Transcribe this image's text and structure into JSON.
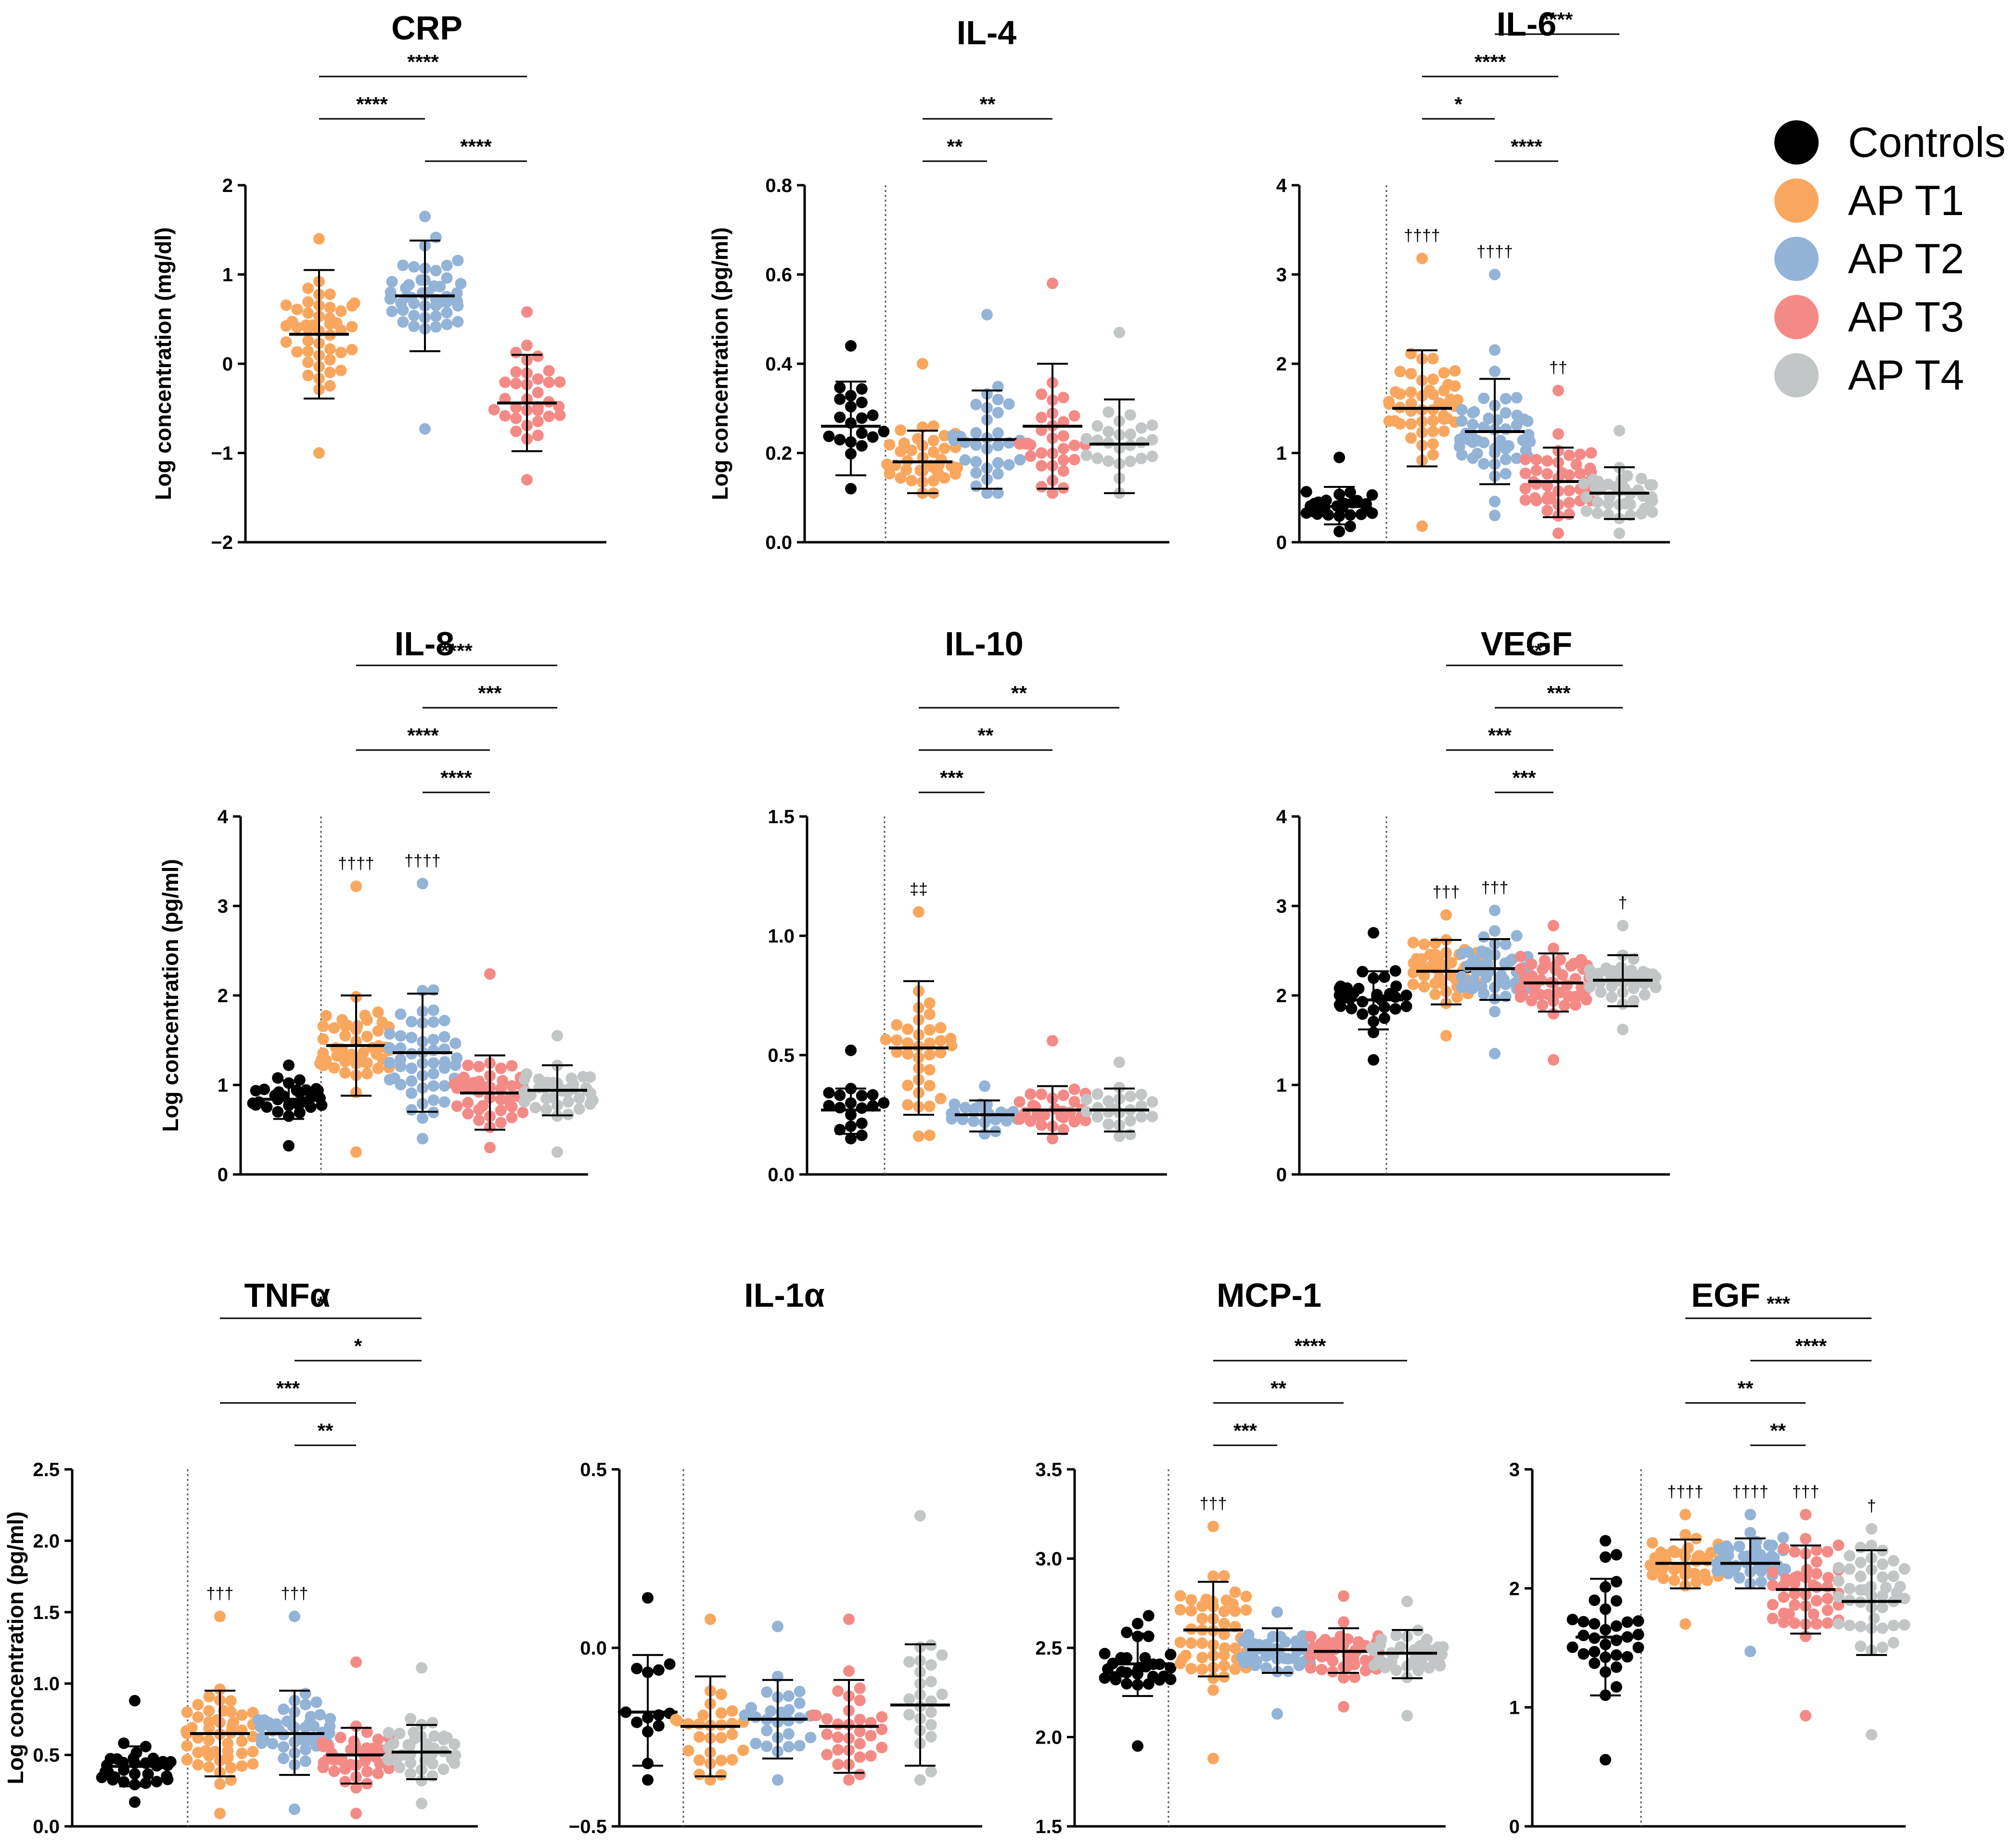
{
  "colors": {
    "Controls": "#000000",
    "AP T1": "#F9A75E",
    "AP T2": "#93B3D7",
    "AP T3": "#F48A86",
    "AP T4": "#C3C6C6"
  },
  "legend": [
    "Controls",
    "AP T1",
    "AP T2",
    "AP T3",
    "AP T4"
  ],
  "chart_data": [
    {
      "type": "scatter",
      "title": "CRP",
      "ylabel": "Log concentration (mg/dl)",
      "ylim": [
        -2,
        2
      ],
      "yticks": [
        "-2",
        "-1",
        "0",
        "1",
        "2"
      ],
      "groups": [
        {
          "name": "AP T1",
          "mean": 0.33,
          "sd_low": -0.39,
          "sd_high": 1.05,
          "n": 48,
          "min": -1.0,
          "max": 1.4
        },
        {
          "name": "AP T2",
          "mean": 0.76,
          "sd_low": 0.14,
          "sd_high": 1.38,
          "n": 52,
          "min": -0.73,
          "max": 1.65
        },
        {
          "name": "AP T3",
          "mean": -0.44,
          "sd_low": -0.98,
          "sd_high": 0.1,
          "n": 34,
          "min": -1.3,
          "max": 0.58
        }
      ],
      "comparisons": [
        {
          "from": "AP T1",
          "to": "AP T3",
          "label": "****"
        },
        {
          "from": "AP T1",
          "to": "AP T2",
          "label": "****"
        },
        {
          "from": "AP T2",
          "to": "AP T3",
          "label": "****"
        }
      ],
      "daggers": []
    },
    {
      "type": "scatter",
      "title": "IL-4",
      "ylabel": "Log concentration (pg/ml)",
      "ylim": [
        0,
        0.8
      ],
      "yticks": [
        "0.0",
        "0.2",
        "0.4",
        "0.6",
        "0.8"
      ],
      "groups": [
        {
          "name": "Controls",
          "mean": 0.26,
          "sd_low": 0.15,
          "sd_high": 0.36,
          "n": 20,
          "min": 0.12,
          "max": 0.44
        },
        {
          "name": "AP T1",
          "mean": 0.18,
          "sd_low": 0.11,
          "sd_high": 0.25,
          "n": 40,
          "min": 0.11,
          "max": 0.4
        },
        {
          "name": "AP T2",
          "mean": 0.23,
          "sd_low": 0.12,
          "sd_high": 0.34,
          "n": 34,
          "min": 0.11,
          "max": 0.51
        },
        {
          "name": "AP T3",
          "mean": 0.26,
          "sd_low": 0.12,
          "sd_high": 0.4,
          "n": 32,
          "min": 0.11,
          "max": 0.58
        },
        {
          "name": "AP T4",
          "mean": 0.22,
          "sd_low": 0.11,
          "sd_high": 0.32,
          "n": 26,
          "min": 0.11,
          "max": 0.47
        }
      ],
      "comparisons": [
        {
          "from": "AP T1",
          "to": "AP T3",
          "label": "**"
        },
        {
          "from": "AP T1",
          "to": "AP T2",
          "label": "**"
        }
      ],
      "daggers": []
    },
    {
      "type": "scatter",
      "title": "IL-6",
      "ylabel": "",
      "ylim": [
        0,
        4
      ],
      "yticks": [
        "0",
        "1",
        "2",
        "3",
        "4"
      ],
      "groups": [
        {
          "name": "Controls",
          "mean": 0.4,
          "sd_low": 0.2,
          "sd_high": 0.62,
          "n": 32,
          "min": 0.12,
          "max": 0.95
        },
        {
          "name": "AP T1",
          "mean": 1.5,
          "sd_low": 0.85,
          "sd_high": 2.15,
          "n": 50,
          "min": 0.18,
          "max": 3.18
        },
        {
          "name": "AP T2",
          "mean": 1.24,
          "sd_low": 0.65,
          "sd_high": 1.83,
          "n": 52,
          "min": 0.3,
          "max": 3.0
        },
        {
          "name": "AP T3",
          "mean": 0.68,
          "sd_low": 0.28,
          "sd_high": 1.06,
          "n": 44,
          "min": 0.1,
          "max": 1.7
        },
        {
          "name": "AP T4",
          "mean": 0.55,
          "sd_low": 0.26,
          "sd_high": 0.84,
          "n": 42,
          "min": 0.1,
          "max": 1.25
        }
      ],
      "comparisons": [
        {
          "from": "AP T1",
          "to": "AP T4",
          "label": "****"
        },
        {
          "from": "AP T2",
          "to": "AP T4",
          "label": "****"
        },
        {
          "from": "AP T1",
          "to": "AP T3",
          "label": "****"
        },
        {
          "from": "AP T1",
          "to": "AP T2",
          "label": "*"
        },
        {
          "from": "AP T2",
          "to": "AP T3",
          "label": "****"
        }
      ],
      "daggers": [
        {
          "group": "AP T1",
          "label": "††††"
        },
        {
          "group": "AP T2",
          "label": "††††"
        },
        {
          "group": "AP T3",
          "label": "††"
        }
      ]
    },
    {
      "type": "scatter",
      "title": "IL-8",
      "ylabel": "Log concentration (pg/ml)",
      "ylim": [
        0,
        4
      ],
      "yticks": [
        "0",
        "1",
        "2",
        "3",
        "4"
      ],
      "groups": [
        {
          "name": "Controls",
          "mean": 0.84,
          "sd_low": 0.62,
          "sd_high": 1.05,
          "n": 32,
          "min": 0.32,
          "max": 1.22
        },
        {
          "name": "AP T1",
          "mean": 1.44,
          "sd_low": 0.88,
          "sd_high": 2.0,
          "n": 52,
          "min": 0.25,
          "max": 3.22
        },
        {
          "name": "AP T2",
          "mean": 1.36,
          "sd_low": 0.7,
          "sd_high": 2.02,
          "n": 52,
          "min": 0.4,
          "max": 3.25
        },
        {
          "name": "AP T3",
          "mean": 0.91,
          "sd_low": 0.5,
          "sd_high": 1.33,
          "n": 46,
          "min": 0.3,
          "max": 2.24
        },
        {
          "name": "AP T4",
          "mean": 0.94,
          "sd_low": 0.66,
          "sd_high": 1.22,
          "n": 44,
          "min": 0.25,
          "max": 1.55
        }
      ],
      "comparisons": [
        {
          "from": "AP T1",
          "to": "AP T4",
          "label": "****"
        },
        {
          "from": "AP T2",
          "to": "AP T4",
          "label": "***"
        },
        {
          "from": "AP T1",
          "to": "AP T3",
          "label": "****"
        },
        {
          "from": "AP T2",
          "to": "AP T3",
          "label": "****"
        }
      ],
      "daggers": [
        {
          "group": "AP T1",
          "label": "††††"
        },
        {
          "group": "AP T2",
          "label": "††††"
        }
      ]
    },
    {
      "type": "scatter",
      "title": "IL-10",
      "ylabel": "",
      "ylim": [
        0,
        1.5
      ],
      "yticks": [
        "0.0",
        "0.5",
        "1.0",
        "1.5"
      ],
      "groups": [
        {
          "name": "Controls",
          "mean": 0.27,
          "sd_low": 0.17,
          "sd_high": 0.36,
          "n": 18,
          "min": 0.15,
          "max": 0.52
        },
        {
          "name": "AP T1",
          "mean": 0.53,
          "sd_low": 0.25,
          "sd_high": 0.81,
          "n": 36,
          "min": 0.16,
          "max": 1.1
        },
        {
          "name": "AP T2",
          "mean": 0.25,
          "sd_low": 0.18,
          "sd_high": 0.31,
          "n": 26,
          "min": 0.17,
          "max": 0.37
        },
        {
          "name": "AP T3",
          "mean": 0.27,
          "sd_low": 0.17,
          "sd_high": 0.37,
          "n": 30,
          "min": 0.15,
          "max": 0.56
        },
        {
          "name": "AP T4",
          "mean": 0.27,
          "sd_low": 0.18,
          "sd_high": 0.36,
          "n": 24,
          "min": 0.16,
          "max": 0.47
        }
      ],
      "comparisons": [
        {
          "from": "AP T1",
          "to": "AP T4",
          "label": "**"
        },
        {
          "from": "AP T1",
          "to": "AP T3",
          "label": "**"
        },
        {
          "from": "AP T1",
          "to": "AP T2",
          "label": "***"
        }
      ],
      "daggers": [
        {
          "group": "AP T1",
          "label": "‡‡"
        }
      ]
    },
    {
      "type": "scatter",
      "title": "VEGF",
      "ylabel": "",
      "ylim": [
        0,
        4
      ],
      "yticks": [
        "0",
        "1",
        "2",
        "3",
        "4"
      ],
      "groups": [
        {
          "name": "Controls",
          "mean": 1.95,
          "sd_low": 1.62,
          "sd_high": 2.27,
          "n": 34,
          "min": 1.28,
          "max": 2.7
        },
        {
          "name": "AP T1",
          "mean": 2.27,
          "sd_low": 1.9,
          "sd_high": 2.62,
          "n": 52,
          "min": 1.55,
          "max": 2.9
        },
        {
          "name": "AP T2",
          "mean": 2.3,
          "sd_low": 1.95,
          "sd_high": 2.63,
          "n": 52,
          "min": 1.35,
          "max": 2.95
        },
        {
          "name": "AP T3",
          "mean": 2.14,
          "sd_low": 1.82,
          "sd_high": 2.47,
          "n": 48,
          "min": 1.28,
          "max": 2.78
        },
        {
          "name": "AP T4",
          "mean": 2.17,
          "sd_low": 1.88,
          "sd_high": 2.45,
          "n": 46,
          "min": 1.62,
          "max": 2.78
        }
      ],
      "comparisons": [
        {
          "from": "AP T1",
          "to": "AP T4",
          "label": "**"
        },
        {
          "from": "AP T2",
          "to": "AP T4",
          "label": "***"
        },
        {
          "from": "AP T1",
          "to": "AP T3",
          "label": "***"
        },
        {
          "from": "AP T2",
          "to": "AP T3",
          "label": "***"
        }
      ],
      "daggers": [
        {
          "group": "AP T1",
          "label": "†††"
        },
        {
          "group": "AP T2",
          "label": "†††"
        },
        {
          "group": "AP T4",
          "label": "†"
        }
      ]
    },
    {
      "type": "scatter",
      "title": "TNFα",
      "ylabel": "Log concentration (pg/ml)",
      "ylim": [
        0,
        2.5
      ],
      "yticks": [
        "0.0",
        "0.5",
        "1.0",
        "1.5",
        "2.0",
        "2.5"
      ],
      "groups": [
        {
          "name": "Controls",
          "mean": 0.42,
          "sd_low": 0.28,
          "sd_high": 0.56,
          "n": 32,
          "min": 0.17,
          "max": 0.88
        },
        {
          "name": "AP T1",
          "mean": 0.65,
          "sd_low": 0.35,
          "sd_high": 0.95,
          "n": 52,
          "min": 0.09,
          "max": 1.47
        },
        {
          "name": "AP T2",
          "mean": 0.65,
          "sd_low": 0.36,
          "sd_high": 0.95,
          "n": 52,
          "min": 0.12,
          "max": 1.47
        },
        {
          "name": "AP T3",
          "mean": 0.5,
          "sd_low": 0.3,
          "sd_high": 0.69,
          "n": 44,
          "min": 0.09,
          "max": 1.15
        },
        {
          "name": "AP T4",
          "mean": 0.52,
          "sd_low": 0.33,
          "sd_high": 0.71,
          "n": 42,
          "min": 0.16,
          "max": 1.11
        }
      ],
      "comparisons": [
        {
          "from": "AP T1",
          "to": "AP T4",
          "label": "*"
        },
        {
          "from": "AP T2",
          "to": "AP T4",
          "label": "*"
        },
        {
          "from": "AP T1",
          "to": "AP T3",
          "label": "***"
        },
        {
          "from": "AP T2",
          "to": "AP T3",
          "label": "**"
        }
      ],
      "daggers": [
        {
          "group": "AP T1",
          "label": "†††"
        },
        {
          "group": "AP T2",
          "label": "†††"
        }
      ]
    },
    {
      "type": "scatter",
      "title": "IL-1α",
      "ylabel": "",
      "ylim": [
        -0.5,
        0.5
      ],
      "yticks": [
        "-0.5",
        "0.0",
        "0.5"
      ],
      "groups": [
        {
          "name": "Controls",
          "mean": -0.18,
          "sd_low": -0.33,
          "sd_high": -0.02,
          "n": 14,
          "min": -0.37,
          "max": 0.14
        },
        {
          "name": "AP T1",
          "mean": -0.22,
          "sd_low": -0.36,
          "sd_high": -0.08,
          "n": 30,
          "min": -0.37,
          "max": 0.08
        },
        {
          "name": "AP T2",
          "mean": -0.2,
          "sd_low": -0.31,
          "sd_high": -0.09,
          "n": 28,
          "min": -0.37,
          "max": 0.06
        },
        {
          "name": "AP T3",
          "mean": -0.22,
          "sd_low": -0.35,
          "sd_high": -0.09,
          "n": 32,
          "min": -0.37,
          "max": 0.08
        },
        {
          "name": "AP T4",
          "mean": -0.16,
          "sd_low": -0.33,
          "sd_high": 0.01,
          "n": 24,
          "min": -0.37,
          "max": 0.37
        }
      ],
      "comparisons": [],
      "daggers": []
    },
    {
      "type": "scatter",
      "title": "MCP-1",
      "ylabel": "",
      "ylim": [
        1.5,
        3.5
      ],
      "yticks": [
        "1.5",
        "2.0",
        "2.5",
        "3.0",
        "3.5"
      ],
      "groups": [
        {
          "name": "Controls",
          "mean": 2.41,
          "sd_low": 2.23,
          "sd_high": 2.58,
          "n": 32,
          "min": 1.95,
          "max": 2.68
        },
        {
          "name": "AP T1",
          "mean": 2.6,
          "sd_low": 2.34,
          "sd_high": 2.87,
          "n": 52,
          "min": 1.88,
          "max": 3.18
        },
        {
          "name": "AP T2",
          "mean": 2.49,
          "sd_low": 2.36,
          "sd_high": 2.61,
          "n": 50,
          "min": 2.13,
          "max": 2.7
        },
        {
          "name": "AP T3",
          "mean": 2.48,
          "sd_low": 2.36,
          "sd_high": 2.61,
          "n": 48,
          "min": 2.17,
          "max": 2.79
        },
        {
          "name": "AP T4",
          "mean": 2.47,
          "sd_low": 2.33,
          "sd_high": 2.6,
          "n": 46,
          "min": 2.12,
          "max": 2.76
        }
      ],
      "comparisons": [
        {
          "from": "AP T1",
          "to": "AP T4",
          "label": "****"
        },
        {
          "from": "AP T1",
          "to": "AP T3",
          "label": "**"
        },
        {
          "from": "AP T1",
          "to": "AP T2",
          "label": "***"
        }
      ],
      "daggers": [
        {
          "group": "AP T1",
          "label": "†††"
        }
      ]
    },
    {
      "type": "scatter",
      "title": "EGF",
      "ylabel": "",
      "ylim": [
        0,
        3
      ],
      "yticks": [
        "0",
        "1",
        "2",
        "3"
      ],
      "groups": [
        {
          "name": "Controls",
          "mean": 1.59,
          "sd_low": 1.1,
          "sd_high": 2.08,
          "n": 34,
          "min": 0.56,
          "max": 2.4
        },
        {
          "name": "AP T1",
          "mean": 2.21,
          "sd_low": 2.0,
          "sd_high": 2.41,
          "n": 52,
          "min": 1.7,
          "max": 2.62
        },
        {
          "name": "AP T2",
          "mean": 2.21,
          "sd_low": 2.0,
          "sd_high": 2.42,
          "n": 52,
          "min": 1.47,
          "max": 2.62
        },
        {
          "name": "AP T3",
          "mean": 1.99,
          "sd_low": 1.62,
          "sd_high": 2.36,
          "n": 48,
          "min": 0.93,
          "max": 2.62
        },
        {
          "name": "AP T4",
          "mean": 1.89,
          "sd_low": 1.44,
          "sd_high": 2.32,
          "n": 46,
          "min": 0.77,
          "max": 2.5
        }
      ],
      "comparisons": [
        {
          "from": "AP T1",
          "to": "AP T4",
          "label": "***"
        },
        {
          "from": "AP T2",
          "to": "AP T4",
          "label": "****"
        },
        {
          "from": "AP T1",
          "to": "AP T3",
          "label": "**"
        },
        {
          "from": "AP T2",
          "to": "AP T3",
          "label": "**"
        }
      ],
      "daggers": [
        {
          "group": "AP T1",
          "label": "††††"
        },
        {
          "group": "AP T2",
          "label": "††††"
        },
        {
          "group": "AP T3",
          "label": "†††"
        },
        {
          "group": "AP T4",
          "label": "†"
        }
      ]
    }
  ]
}
